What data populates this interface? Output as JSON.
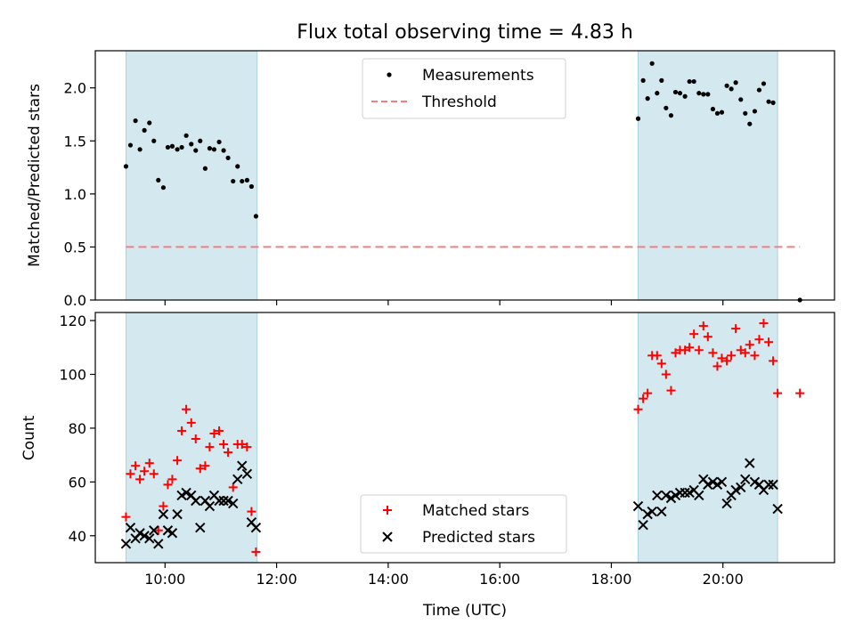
{
  "chart_data": [
    {
      "type": "scatter",
      "title": "Flux total observing time = 4.83 h",
      "xlabel": "",
      "ylabel": "Matched/Predicted stars",
      "xlim": [
        8.75,
        22.0
      ],
      "ylim": [
        0.0,
        2.35
      ],
      "yticks": [
        0.0,
        0.5,
        1.0,
        1.5,
        2.0
      ],
      "ytick_labels": [
        "0.0",
        "0.5",
        "1.0",
        "1.5",
        "2.0"
      ],
      "xticks": [
        10,
        12,
        14,
        16,
        18,
        20
      ],
      "shaded_intervals": [
        [
          9.3,
          11.65
        ],
        [
          18.48,
          20.98
        ]
      ],
      "legend_position": "top-center",
      "series": [
        {
          "name": "Measurements",
          "marker": "dot",
          "color": "#000000",
          "x": [
            9.3,
            9.38,
            9.47,
            9.55,
            9.63,
            9.72,
            9.8,
            9.88,
            9.97,
            10.05,
            10.13,
            10.22,
            10.3,
            10.38,
            10.47,
            10.55,
            10.63,
            10.72,
            10.8,
            10.88,
            10.97,
            11.05,
            11.13,
            11.22,
            11.3,
            11.38,
            11.47,
            11.55,
            11.63,
            18.48,
            18.57,
            18.65,
            18.73,
            18.82,
            18.9,
            18.98,
            19.07,
            19.15,
            19.23,
            19.32,
            19.4,
            19.48,
            19.57,
            19.65,
            19.73,
            19.82,
            19.9,
            19.98,
            20.07,
            20.15,
            20.23,
            20.32,
            20.4,
            20.48,
            20.57,
            20.65,
            20.73,
            20.82,
            20.9,
            21.38
          ],
          "y": [
            1.26,
            1.46,
            1.69,
            1.42,
            1.6,
            1.67,
            1.5,
            1.13,
            1.06,
            1.44,
            1.45,
            1.42,
            1.44,
            1.55,
            1.47,
            1.41,
            1.5,
            1.24,
            1.43,
            1.42,
            1.49,
            1.41,
            1.34,
            1.12,
            1.26,
            1.12,
            1.13,
            1.07,
            0.79,
            1.71,
            2.07,
            1.9,
            2.23,
            1.95,
            2.07,
            1.81,
            1.74,
            1.96,
            1.95,
            1.92,
            2.06,
            2.06,
            1.95,
            1.94,
            1.94,
            1.8,
            1.76,
            1.77,
            2.02,
            1.99,
            2.05,
            1.89,
            1.76,
            1.66,
            1.78,
            1.98,
            2.04,
            1.87,
            1.86,
            0.0
          ]
        },
        {
          "name": "Threshold",
          "marker": "dashed-line",
          "color": "#f08080",
          "x": [
            9.3,
            21.38
          ],
          "y": [
            0.5,
            0.5
          ]
        }
      ]
    },
    {
      "type": "scatter",
      "title": "",
      "xlabel": "Time (UTC)",
      "ylabel": "Count",
      "xlim": [
        8.75,
        22.0
      ],
      "ylim": [
        30,
        123
      ],
      "yticks": [
        40,
        60,
        80,
        100,
        120
      ],
      "ytick_labels": [
        "40",
        "60",
        "80",
        "100",
        "120"
      ],
      "xticks": [
        10,
        12,
        14,
        16,
        18,
        20
      ],
      "xtick_labels": [
        "10:00",
        "12:00",
        "14:00",
        "16:00",
        "18:00",
        "20:00"
      ],
      "shaded_intervals": [
        [
          9.3,
          11.65
        ],
        [
          18.48,
          20.98
        ]
      ],
      "legend_position": "bottom-center",
      "series": [
        {
          "name": "Matched stars",
          "marker": "plus",
          "color": "#ff0000",
          "x": [
            9.3,
            9.38,
            9.47,
            9.55,
            9.63,
            9.72,
            9.8,
            9.88,
            9.97,
            10.05,
            10.13,
            10.22,
            10.3,
            10.38,
            10.47,
            10.55,
            10.63,
            10.72,
            10.8,
            10.88,
            10.97,
            11.05,
            11.13,
            11.22,
            11.3,
            11.38,
            11.47,
            11.55,
            11.63,
            18.48,
            18.57,
            18.65,
            18.73,
            18.82,
            18.9,
            18.98,
            19.07,
            19.15,
            19.23,
            19.32,
            19.4,
            19.48,
            19.57,
            19.65,
            19.73,
            19.82,
            19.9,
            19.98,
            20.07,
            20.15,
            20.23,
            20.32,
            20.4,
            20.48,
            20.57,
            20.65,
            20.73,
            20.82,
            20.9,
            20.98,
            21.38
          ],
          "y": [
            47,
            63,
            66,
            61,
            64,
            67,
            63,
            42,
            51,
            59,
            61,
            68,
            79,
            87,
            82,
            76,
            65,
            66,
            73,
            78,
            79,
            74,
            71,
            58,
            74,
            74,
            73,
            49,
            34,
            87,
            91,
            93,
            107,
            107,
            104,
            100,
            94,
            108,
            109,
            109,
            110,
            115,
            109,
            118,
            114,
            108,
            103,
            106,
            105,
            107,
            117,
            109,
            108,
            111,
            107,
            113,
            119,
            112,
            105,
            93,
            93
          ]
        },
        {
          "name": "Predicted stars",
          "marker": "x",
          "color": "#000000",
          "x": [
            9.3,
            9.38,
            9.47,
            9.55,
            9.63,
            9.72,
            9.8,
            9.88,
            9.97,
            10.05,
            10.13,
            10.22,
            10.3,
            10.38,
            10.47,
            10.55,
            10.63,
            10.72,
            10.8,
            10.88,
            10.97,
            11.05,
            11.13,
            11.22,
            11.3,
            11.38,
            11.47,
            11.55,
            11.63,
            18.48,
            18.57,
            18.65,
            18.73,
            18.82,
            18.9,
            18.98,
            19.07,
            19.15,
            19.23,
            19.32,
            19.4,
            19.48,
            19.57,
            19.65,
            19.73,
            19.82,
            19.9,
            19.98,
            20.07,
            20.15,
            20.23,
            20.32,
            20.4,
            20.48,
            20.57,
            20.65,
            20.73,
            20.82,
            20.9,
            20.98
          ],
          "y": [
            37,
            43,
            39,
            41,
            40,
            39,
            42,
            37,
            48,
            42,
            41,
            48,
            55,
            56,
            55,
            53,
            43,
            53,
            51,
            55,
            53,
            53,
            53,
            52,
            61,
            66,
            63,
            45,
            43,
            51,
            44,
            48,
            49,
            55,
            49,
            55,
            54,
            55,
            56,
            56,
            56,
            57,
            55,
            61,
            59,
            60,
            59,
            60,
            52,
            55,
            57,
            58,
            61,
            67,
            60,
            59,
            57,
            59,
            59,
            50
          ]
        }
      ]
    }
  ]
}
